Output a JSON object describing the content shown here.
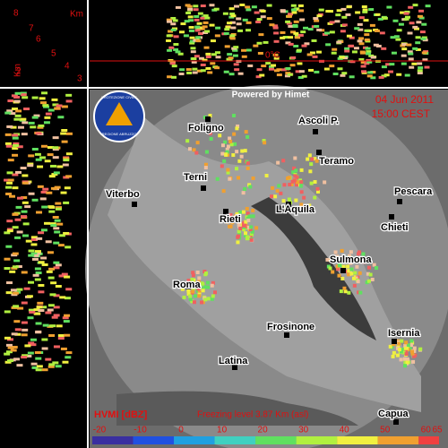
{
  "height_scale": {
    "unit": "Km",
    "labels": [
      "8",
      "7",
      "6",
      "5",
      "4",
      "3",
      "2"
    ]
  },
  "freezing_marker": "0°C",
  "logo": {
    "top": "PROTEZIONE CIVILE",
    "bottom": "REGIONE ABRUZZO"
  },
  "credit": "Powered by Himet",
  "date": "04 Jun 2011",
  "time": "15:00 CEST",
  "cities": [
    "Ascoli P.",
    "Foligno",
    "Teramo",
    "Terni",
    "Pescara",
    "Viterbo",
    "L'Aquila",
    "Rieti",
    "Chieti",
    "Sulmona",
    "Roma",
    "Frosinone",
    "Isernia",
    "Latina",
    "Capua"
  ],
  "legend": {
    "title": "HVMI [dBZ]",
    "freezing_level": "Freezing level 3.87 Km (asl)",
    "ticks": [
      -20,
      -10,
      0,
      10,
      20,
      30,
      40,
      50,
      60,
      65
    ]
  }
}
